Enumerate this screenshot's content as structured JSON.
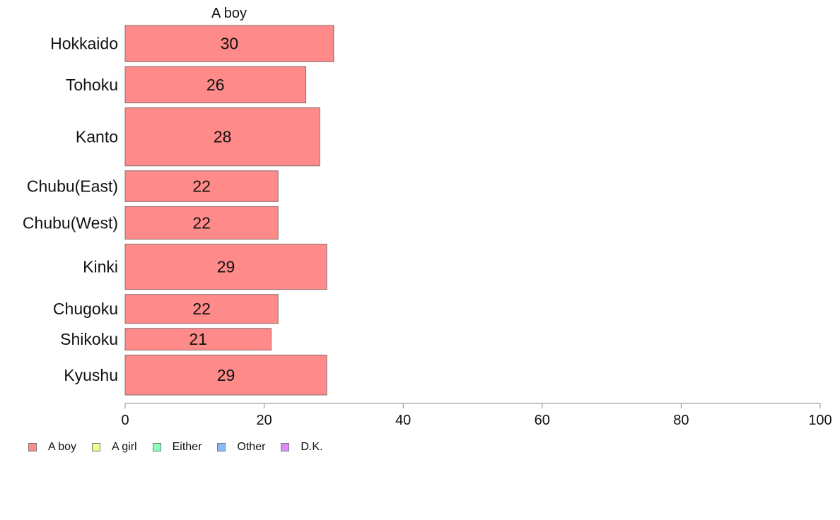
{
  "chart_data": {
    "type": "bar",
    "orientation": "horizontal",
    "title": "A boy",
    "categories": [
      "Hokkaido",
      "Tohoku",
      "Kanto",
      "Chubu(East)",
      "Chubu(West)",
      "Kinki",
      "Chugoku",
      "Shikoku",
      "Kyushu"
    ],
    "series": [
      {
        "name": "A boy",
        "values": [
          30,
          26,
          28,
          22,
          22,
          29,
          22,
          21,
          29
        ],
        "color": "#ff8a8a"
      }
    ],
    "data_labels": [
      "30",
      "26",
      "28",
      "22",
      "22",
      "29",
      "22",
      "21",
      "29"
    ],
    "xlim": [
      0,
      100
    ],
    "xticks": [
      0,
      20,
      40,
      60,
      80,
      100
    ],
    "relative_bar_widths": [
      1,
      1,
      1.6,
      0.85,
      0.9,
      1.25,
      0.8,
      0.6,
      1.1
    ],
    "grid": false,
    "legend": {
      "position": "bottom-left",
      "entries": [
        {
          "label": "A boy",
          "color": "#ff8a8a"
        },
        {
          "label": "A girl",
          "color": "#ebff8a"
        },
        {
          "label": "Either",
          "color": "#8affb8"
        },
        {
          "label": "Other",
          "color": "#8ab8ff"
        },
        {
          "label": "D.K.",
          "color": "#e08aff"
        }
      ]
    }
  }
}
